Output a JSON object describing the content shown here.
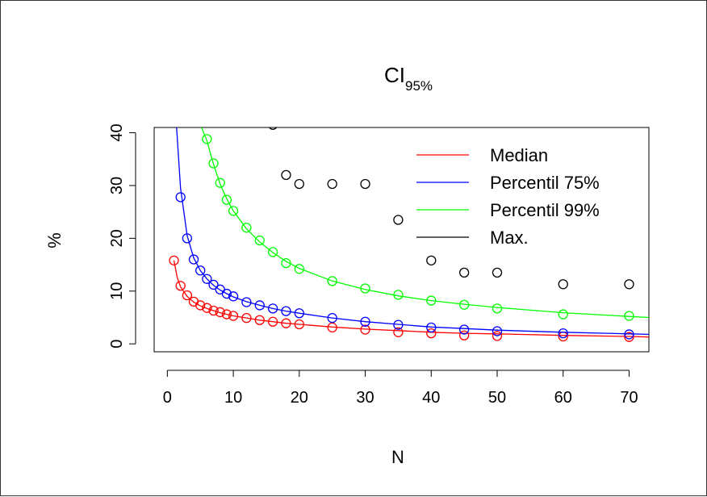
{
  "chart_data": {
    "type": "scatter",
    "title_main": "CI",
    "title_sub": "95%",
    "xlabel": "N",
    "ylabel": "%",
    "xlim": [
      -2,
      73
    ],
    "ylim": [
      -1.5,
      41
    ],
    "xticks": [
      0,
      10,
      20,
      30,
      40,
      50,
      60,
      70
    ],
    "yticks": [
      0,
      10,
      20,
      30,
      40
    ],
    "grid": false,
    "legend_position": "top-right",
    "series": [
      {
        "name": "Median",
        "color": "#ff0000",
        "x": [
          1,
          2,
          3,
          4,
          5,
          6,
          7,
          8,
          9,
          10,
          12,
          14,
          16,
          18,
          20,
          25,
          30,
          35,
          40,
          45,
          50,
          60,
          70
        ],
        "y": [
          15.8,
          11.0,
          9.2,
          8.0,
          7.3,
          6.8,
          6.3,
          6.0,
          5.6,
          5.3,
          4.9,
          4.5,
          4.2,
          3.9,
          3.7,
          3.1,
          2.7,
          2.2,
          2.0,
          1.6,
          1.5,
          1.4,
          1.3
        ],
        "curve_x": [
          1,
          1.5,
          2,
          3,
          4,
          5,
          6,
          7,
          8,
          9,
          10,
          12,
          14,
          16,
          18,
          20,
          25,
          30,
          35,
          40,
          45,
          50,
          60,
          70,
          73
        ],
        "curve_y": [
          15.8,
          12.6,
          10.8,
          9.0,
          7.9,
          7.2,
          6.7,
          6.3,
          5.9,
          5.6,
          5.3,
          4.9,
          4.5,
          4.2,
          3.9,
          3.7,
          3.2,
          2.8,
          2.5,
          2.2,
          2.0,
          1.9,
          1.6,
          1.4,
          1.3
        ]
      },
      {
        "name": "Percentil 75%",
        "color": "#0000ff",
        "x": [
          2,
          3,
          4,
          5,
          6,
          7,
          8,
          9,
          10,
          12,
          14,
          16,
          18,
          20,
          25,
          30,
          35,
          40,
          45,
          50,
          60,
          70
        ],
        "y": [
          27.8,
          20.0,
          16.0,
          13.9,
          12.3,
          11.2,
          10.3,
          9.5,
          9.0,
          7.9,
          7.3,
          6.7,
          6.2,
          5.8,
          4.9,
          4.2,
          3.6,
          3.1,
          2.7,
          2.4,
          2.0,
          1.8
        ],
        "curve_x": [
          1.4,
          2,
          3,
          4,
          5,
          6,
          7,
          8,
          9,
          10,
          12,
          14,
          16,
          18,
          20,
          25,
          30,
          35,
          40,
          45,
          50,
          60,
          70,
          73
        ],
        "curve_y": [
          41,
          29.5,
          20.5,
          16.3,
          13.9,
          12.3,
          11.1,
          10.2,
          9.5,
          8.9,
          8.0,
          7.3,
          6.7,
          6.2,
          5.8,
          4.9,
          4.2,
          3.7,
          3.2,
          2.9,
          2.6,
          2.2,
          1.9,
          1.8
        ]
      },
      {
        "name": "Percentil 99%",
        "color": "#00ff00",
        "x": [
          6,
          7,
          8,
          9,
          10,
          12,
          14,
          16,
          18,
          20,
          25,
          30,
          35,
          40,
          45,
          50,
          60,
          70
        ],
        "y": [
          38.8,
          34.2,
          30.5,
          27.3,
          25.2,
          22.0,
          19.6,
          17.4,
          15.3,
          14.2,
          11.9,
          10.5,
          9.3,
          8.2,
          7.4,
          6.7,
          5.6,
          5.3
        ],
        "curve_x": [
          5.2,
          6,
          7,
          8,
          9,
          10,
          12,
          14,
          16,
          18,
          20,
          25,
          30,
          35,
          40,
          45,
          50,
          60,
          70,
          73
        ],
        "curve_y": [
          41,
          38.5,
          34.0,
          30.3,
          27.5,
          25.2,
          21.8,
          19.3,
          17.3,
          15.6,
          14.3,
          11.9,
          10.3,
          9.1,
          8.2,
          7.5,
          6.9,
          5.9,
          5.2,
          5.0
        ]
      },
      {
        "name": "Max.",
        "color": "#000000",
        "x": [
          16,
          18,
          20,
          25,
          30,
          35,
          40,
          45,
          50,
          60,
          70
        ],
        "y": [
          41.5,
          32.0,
          30.3,
          30.3,
          30.3,
          23.5,
          15.8,
          13.5,
          13.5,
          11.3,
          11.3
        ]
      }
    ]
  }
}
